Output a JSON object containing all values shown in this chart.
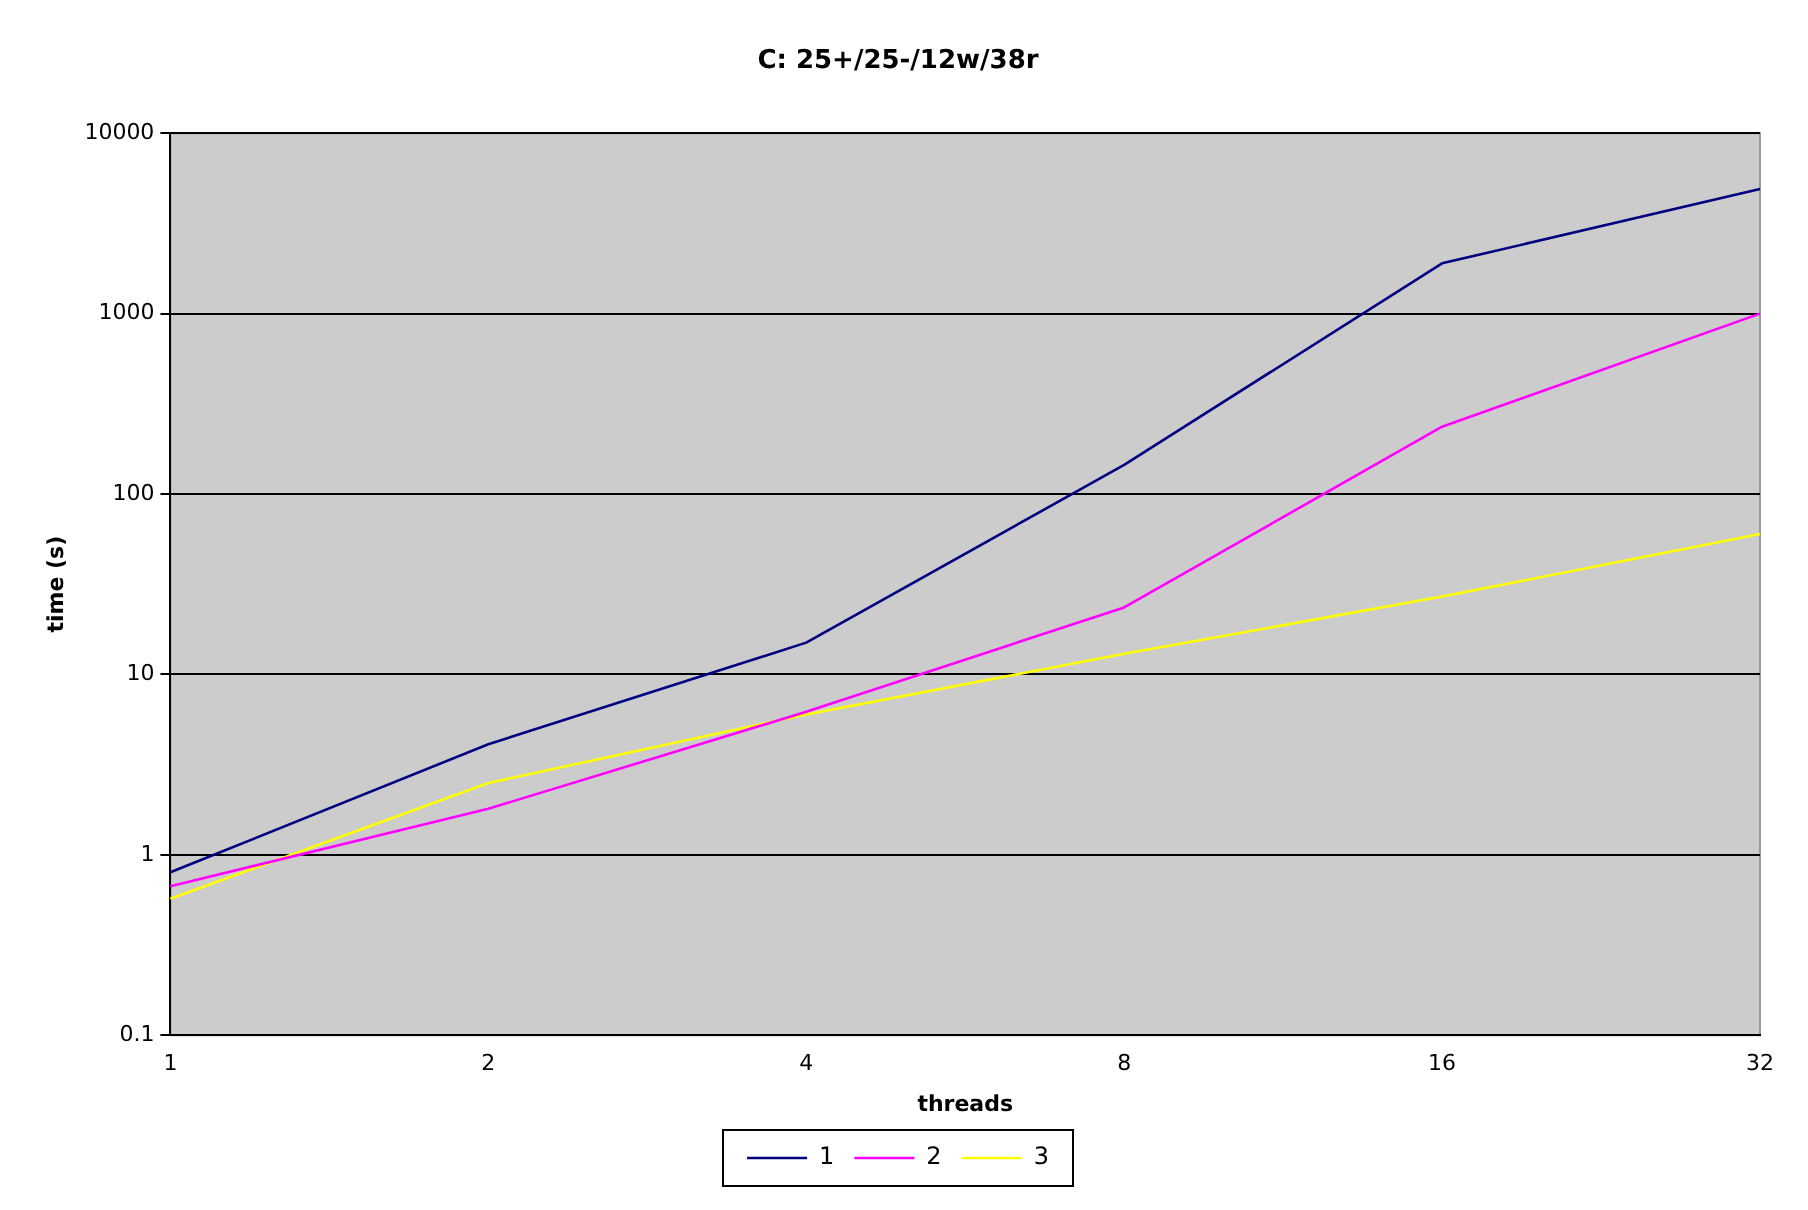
{
  "chart_data": {
    "type": "line",
    "title": "C: 25+/25-/12w/38r",
    "xlabel": "threads",
    "ylabel": "time (s)",
    "categories": [
      "1",
      "2",
      "4",
      "8",
      "16",
      "32"
    ],
    "series": [
      {
        "name": "1",
        "color": "#000080",
        "values": [
          0.8,
          4.1,
          15,
          145,
          1900,
          4900
        ]
      },
      {
        "name": "2",
        "color": "#ff00ff",
        "values": [
          0.67,
          1.8,
          6.2,
          23.5,
          236,
          1000
        ]
      },
      {
        "name": "3",
        "color": "#ffff00",
        "values": [
          0.57,
          2.5,
          6,
          13,
          27,
          60
        ]
      }
    ],
    "log": "y",
    "ylim": [
      0.1,
      10000
    ],
    "yticks": [
      0.1,
      1,
      10,
      100,
      1000,
      10000
    ],
    "grid": "y",
    "legend": "bottom",
    "marker": "none",
    "line_style": "solid"
  }
}
